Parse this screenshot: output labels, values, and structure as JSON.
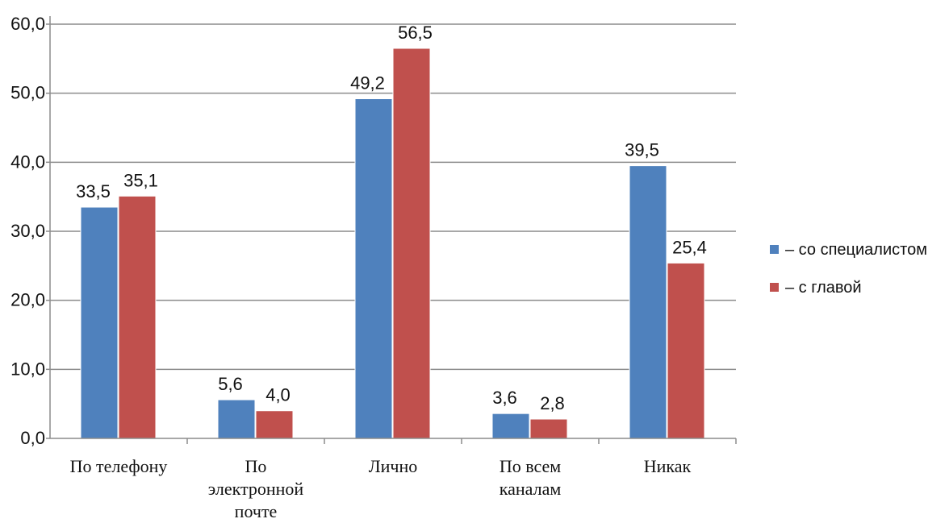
{
  "chart_data": {
    "type": "bar",
    "categories": [
      [
        "По телефону"
      ],
      [
        "По",
        "электронной",
        "почте"
      ],
      [
        "Лично"
      ],
      [
        "По всем",
        "каналам"
      ],
      [
        "Никак"
      ]
    ],
    "series": [
      {
        "name": "– со специалистом",
        "color": "#4F81BD",
        "values": [
          33.5,
          5.6,
          49.2,
          3.6,
          39.5
        ],
        "labels": [
          "33,5",
          "5,6",
          "49,2",
          "3,6",
          "39,5"
        ]
      },
      {
        "name": "– с главой",
        "color": "#C0504D",
        "values": [
          35.1,
          4.0,
          56.5,
          2.8,
          25.4
        ],
        "labels": [
          "35,1",
          "4,0",
          "56,5",
          "2,8",
          "25,4"
        ]
      }
    ],
    "ylim": [
      0,
      60
    ],
    "yticks": [
      0,
      10,
      20,
      30,
      40,
      50,
      60
    ],
    "ytick_labels": [
      "0,0",
      "10,0",
      "20,0",
      "30,0",
      "40,0",
      "50,0",
      "60,0"
    ],
    "grid": true,
    "legend_position": "right"
  }
}
